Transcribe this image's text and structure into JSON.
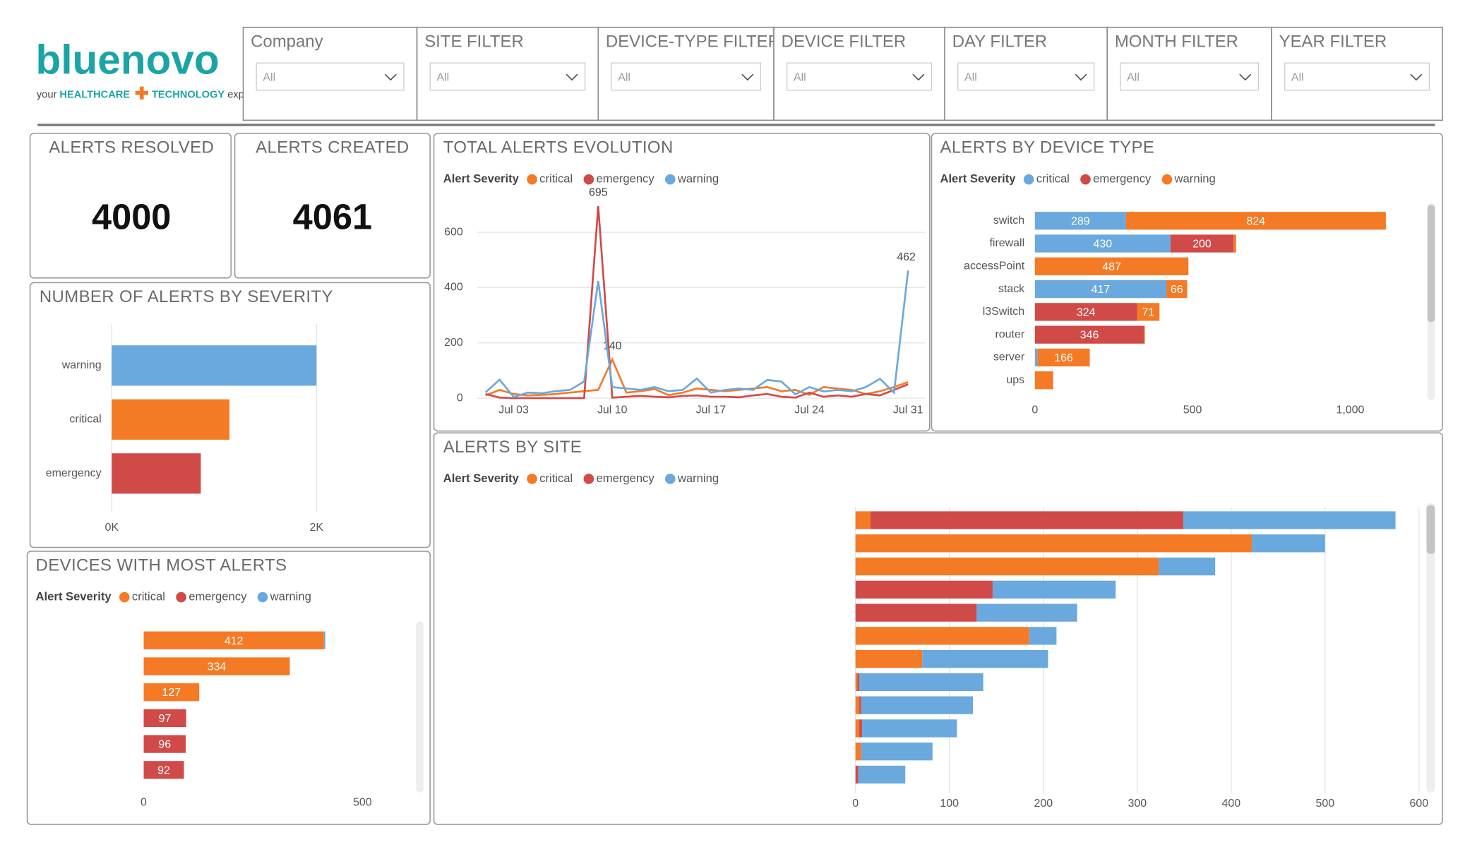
{
  "logo": {
    "name": "bluenovo",
    "tagline": [
      "your",
      "HEALTHCARE",
      "TECHNOLOGY",
      "experts"
    ]
  },
  "filters": [
    {
      "label": "Company",
      "value": "All"
    },
    {
      "label": "SITE FILTER",
      "value": "All"
    },
    {
      "label": "DEVICE-TYPE FILTER",
      "value": "All"
    },
    {
      "label": "DEVICE FILTER",
      "value": "All"
    },
    {
      "label": "DAY FILTER",
      "value": "All"
    },
    {
      "label": "MONTH FILTER",
      "value": "All"
    },
    {
      "label": "YEAR FILTER",
      "value": "All"
    }
  ],
  "cards": [
    {
      "title": "ALERTS RESOLVED",
      "value": 4000
    },
    {
      "title": "ALERTS CREATED",
      "value": 4061
    }
  ],
  "chart_data": [
    {
      "type": "bar",
      "title": "NUMBER OF ALERTS BY SEVERITY",
      "categories": [
        "warning",
        "critical",
        "emergency"
      ],
      "series": [
        {
          "name": "count",
          "values": [
            2000,
            1150,
            870
          ]
        }
      ],
      "colors": [
        "#6aa9de",
        "#f47a26",
        "#d04a48"
      ],
      "xlim": [
        0,
        2000
      ],
      "xticks": [
        {
          "value": 0,
          "label": "0K"
        },
        {
          "value": 2000,
          "label": "2K"
        }
      ],
      "grid": true,
      "data_labels": false
    },
    {
      "type": "line",
      "title": "TOTAL ALERTS EVOLUTION",
      "legend_title": "Alert Severity",
      "categories": [
        null,
        null,
        "Jul 03",
        null,
        null,
        null,
        null,
        null,
        null,
        "Jul 10",
        null,
        null,
        null,
        null,
        null,
        null,
        "Jul 17",
        null,
        null,
        null,
        null,
        null,
        null,
        "Jul 24",
        null,
        null,
        null,
        null,
        null,
        null,
        "Jul 31"
      ],
      "series": [
        {
          "name": "critical",
          "color": "#f47a26",
          "values": [
            10,
            30,
            15,
            10,
            12,
            15,
            20,
            25,
            30,
            140,
            20,
            25,
            33,
            11,
            20,
            35,
            30,
            25,
            30,
            35,
            40,
            25,
            30,
            12,
            40,
            35,
            30,
            15,
            25,
            40,
            58
          ]
        },
        {
          "name": "emergency",
          "color": "#d04a48",
          "values": [
            15,
            2,
            0,
            0,
            0,
            0,
            0,
            0,
            695,
            2,
            5,
            8,
            5,
            3,
            8,
            10,
            5,
            5,
            3,
            10,
            15,
            5,
            2,
            20,
            5,
            10,
            5,
            15,
            10,
            30,
            50
          ]
        },
        {
          "name": "warning",
          "color": "#6aa9de",
          "values": [
            21,
            67,
            4,
            20,
            18,
            25,
            30,
            60,
            424,
            40,
            35,
            30,
            40,
            25,
            30,
            71,
            20,
            30,
            35,
            30,
            66,
            60,
            14,
            40,
            24,
            30,
            25,
            40,
            70,
            20,
            462
          ]
        }
      ],
      "ylim": [
        0,
        710
      ],
      "yticks": [
        0,
        200,
        400,
        600
      ],
      "grid": true
    },
    {
      "type": "bar",
      "title": "ALERTS BY DEVICE TYPE",
      "legend_title": "Alert Severity",
      "stacked": true,
      "categories": [
        "switch",
        "firewall",
        "accessPoint",
        "stack",
        "l3Switch",
        "router",
        "server",
        "ups"
      ],
      "series": [
        {
          "name": "critical",
          "color": "#6aa9de",
          "values": [
            289,
            430,
            null,
            417,
            null,
            null,
            8,
            null
          ]
        },
        {
          "name": "emergency",
          "color": "#d04a48",
          "values": [
            null,
            200,
            null,
            null,
            324,
            346,
            null,
            null
          ]
        },
        {
          "name": "warning",
          "color": "#f47a26",
          "values": [
            824,
            8,
            487,
            66,
            71,
            3,
            166,
            58
          ]
        }
      ],
      "xlim": [
        0,
        1230
      ],
      "xticks": [
        0,
        500,
        {
          "value": 1000,
          "label": "1,000"
        }
      ],
      "grid": false,
      "data_labels": true
    },
    {
      "type": "bar",
      "title": "ALERTS BY SITE",
      "legend_title": "Alert Severity",
      "stacked": true,
      "categories": [
        null,
        null,
        null,
        null,
        null,
        null,
        null,
        null,
        null,
        null,
        null,
        null
      ],
      "series": [
        {
          "name": "critical",
          "color": "#f47a26",
          "values": [
            16,
            422,
            323,
            null,
            null,
            185,
            71,
            2,
            4,
            4,
            6,
            null
          ]
        },
        {
          "name": "emergency",
          "color": "#d04a48",
          "values": [
            333,
            null,
            null,
            146,
            129,
            null,
            null,
            2,
            2,
            3,
            null,
            3
          ]
        },
        {
          "name": "warning",
          "color": "#6aa9de",
          "values": [
            226,
            78,
            60,
            131,
            107,
            29,
            134,
            132,
            119,
            101,
            76,
            50
          ]
        }
      ],
      "xlim": [
        0,
        600
      ],
      "xticks": [
        0,
        100,
        200,
        300,
        400,
        500,
        600
      ],
      "grid": true,
      "data_labels": false
    },
    {
      "type": "bar",
      "title": "DEVICES WITH MOST ALERTS",
      "legend_title": "Alert Severity",
      "stacked": true,
      "categories": [
        null,
        null,
        null,
        null,
        null,
        null
      ],
      "series": [
        {
          "name": "critical",
          "color": "#f47a26",
          "values": [
            412,
            334,
            127,
            null,
            null,
            null
          ]
        },
        {
          "name": "emergency",
          "color": "#d04a48",
          "values": [
            null,
            null,
            null,
            97,
            96,
            92
          ]
        },
        {
          "name": "warning",
          "color": "#6aa9de",
          "values": [
            3,
            null,
            null,
            null,
            null,
            null
          ]
        }
      ],
      "xlim": [
        0,
        616
      ],
      "xticks": [
        0,
        500
      ],
      "grid": false,
      "data_labels": true
    }
  ]
}
